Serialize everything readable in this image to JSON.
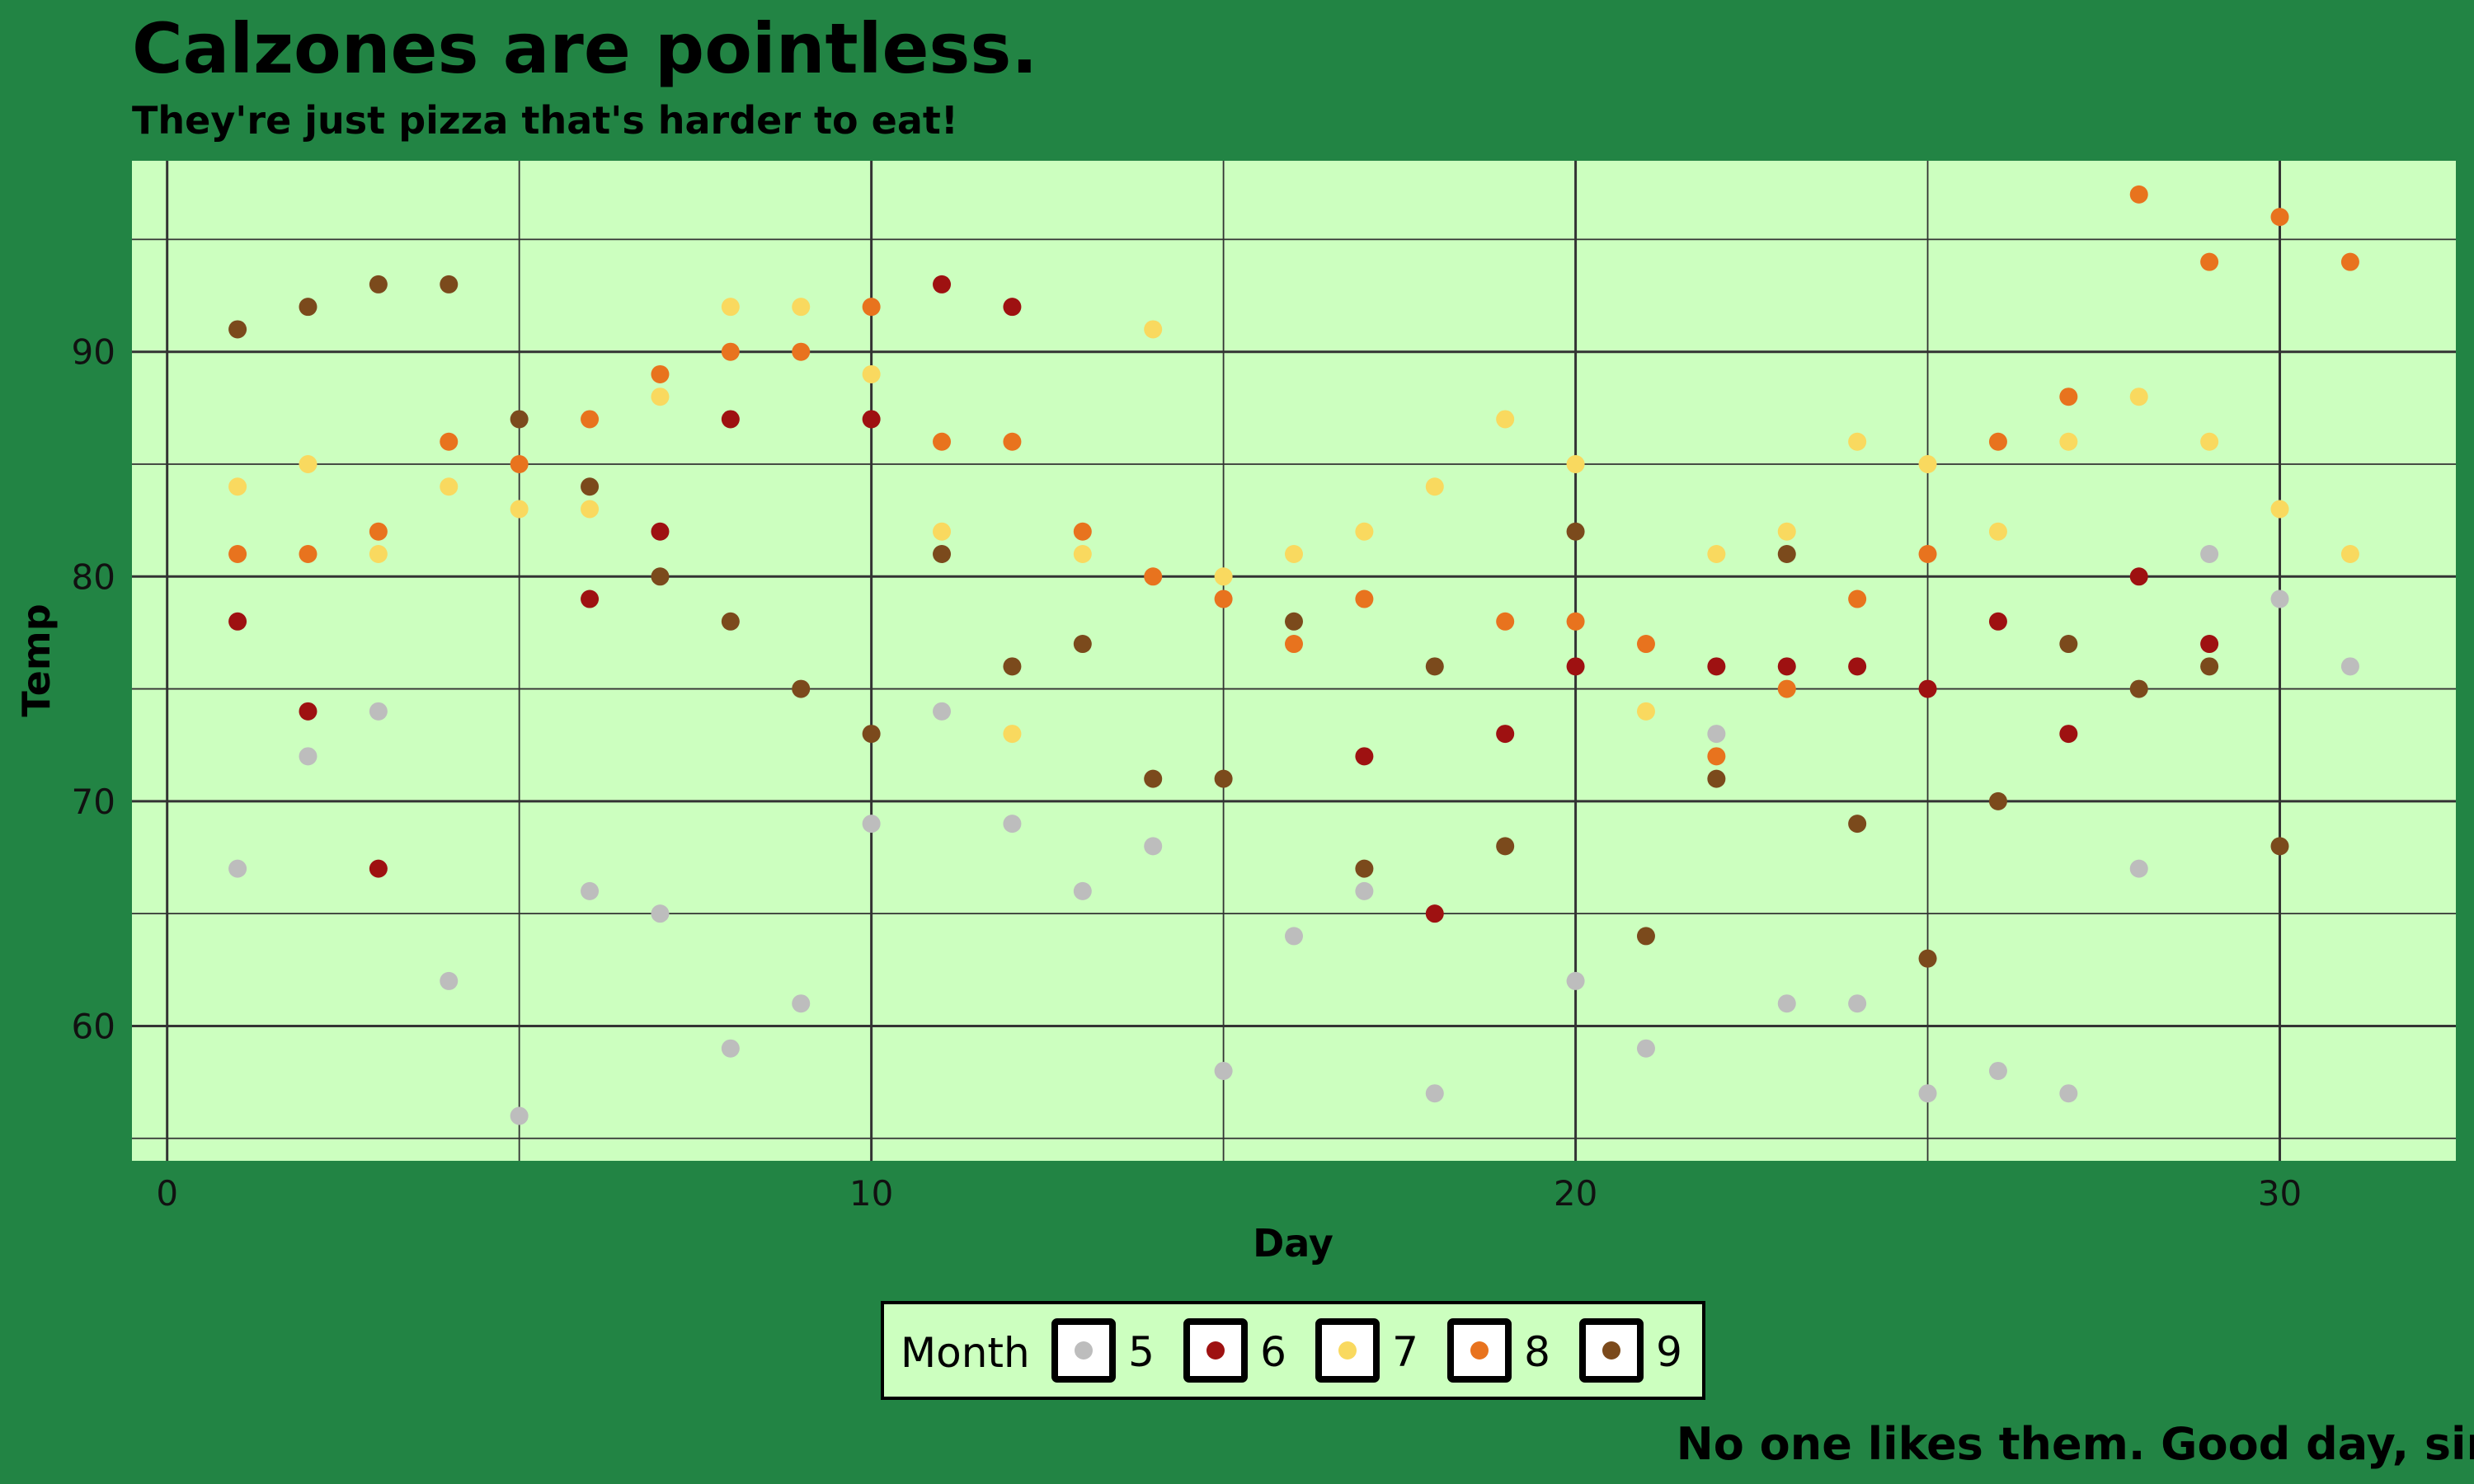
{
  "chart_data": {
    "type": "scatter",
    "title": "Calzones are pointless.",
    "subtitle": "They're just pizza that's harder to eat!",
    "caption": "No one likes them. Good day, sir.",
    "xlabel": "Day",
    "ylabel": "Temp",
    "xlim": [
      -0.5,
      32.5
    ],
    "ylim": [
      54,
      98.5
    ],
    "x_ticks": [
      0,
      10,
      20,
      30
    ],
    "y_ticks": [
      60,
      70,
      80,
      90
    ],
    "grid": true,
    "legend": {
      "title": "Month",
      "position": "bottom",
      "items": [
        {
          "label": "5",
          "color": "#BDBDBD"
        },
        {
          "label": "6",
          "color": "#9E1111"
        },
        {
          "label": "7",
          "color": "#F9D95F"
        },
        {
          "label": "8",
          "color": "#E8731E"
        },
        {
          "label": "9",
          "color": "#7B4A1C"
        }
      ]
    },
    "series": [
      {
        "name": "5",
        "color": "#BDBDBD",
        "points": [
          [
            1,
            67
          ],
          [
            2,
            72
          ],
          [
            3,
            74
          ],
          [
            4,
            62
          ],
          [
            5,
            56
          ],
          [
            6,
            66
          ],
          [
            7,
            65
          ],
          [
            8,
            59
          ],
          [
            9,
            61
          ],
          [
            10,
            69
          ],
          [
            11,
            74
          ],
          [
            12,
            69
          ],
          [
            13,
            66
          ],
          [
            14,
            68
          ],
          [
            15,
            58
          ],
          [
            16,
            64
          ],
          [
            17,
            66
          ],
          [
            18,
            57
          ],
          [
            20,
            62
          ],
          [
            21,
            59
          ],
          [
            22,
            73
          ],
          [
            23,
            61
          ],
          [
            24,
            61
          ],
          [
            25,
            57
          ],
          [
            26,
            58
          ],
          [
            27,
            57
          ],
          [
            28,
            67
          ],
          [
            29,
            81
          ],
          [
            30,
            79
          ],
          [
            31,
            76
          ]
        ]
      },
      {
        "name": "6",
        "color": "#9E1111",
        "points": [
          [
            1,
            78
          ],
          [
            2,
            74
          ],
          [
            3,
            67
          ],
          [
            6,
            79
          ],
          [
            7,
            82
          ],
          [
            8,
            87
          ],
          [
            10,
            87
          ],
          [
            11,
            93
          ],
          [
            12,
            92
          ],
          [
            17,
            72
          ],
          [
            18,
            65
          ],
          [
            19,
            73
          ],
          [
            20,
            76
          ],
          [
            22,
            76
          ],
          [
            23,
            76
          ],
          [
            24,
            76
          ],
          [
            25,
            75
          ],
          [
            26,
            78
          ],
          [
            27,
            73
          ],
          [
            28,
            80
          ],
          [
            29,
            77
          ]
        ]
      },
      {
        "name": "7",
        "color": "#F9D95F",
        "points": [
          [
            1,
            84
          ],
          [
            2,
            85
          ],
          [
            3,
            81
          ],
          [
            4,
            84
          ],
          [
            5,
            83
          ],
          [
            6,
            83
          ],
          [
            7,
            88
          ],
          [
            8,
            92
          ],
          [
            9,
            92
          ],
          [
            10,
            89
          ],
          [
            11,
            82
          ],
          [
            12,
            73
          ],
          [
            13,
            81
          ],
          [
            14,
            91
          ],
          [
            15,
            80
          ],
          [
            16,
            81
          ],
          [
            17,
            82
          ],
          [
            18,
            84
          ],
          [
            19,
            87
          ],
          [
            20,
            85
          ],
          [
            21,
            74
          ],
          [
            22,
            81
          ],
          [
            23,
            82
          ],
          [
            24,
            86
          ],
          [
            25,
            85
          ],
          [
            26,
            82
          ],
          [
            27,
            86
          ],
          [
            28,
            88
          ],
          [
            29,
            86
          ],
          [
            30,
            83
          ],
          [
            31,
            81
          ]
        ]
      },
      {
        "name": "8",
        "color": "#E8731E",
        "points": [
          [
            1,
            81
          ],
          [
            2,
            81
          ],
          [
            3,
            82
          ],
          [
            4,
            86
          ],
          [
            5,
            85
          ],
          [
            6,
            87
          ],
          [
            7,
            89
          ],
          [
            8,
            90
          ],
          [
            9,
            90
          ],
          [
            10,
            92
          ],
          [
            11,
            86
          ],
          [
            12,
            86
          ],
          [
            13,
            82
          ],
          [
            14,
            80
          ],
          [
            15,
            79
          ],
          [
            16,
            77
          ],
          [
            17,
            79
          ],
          [
            19,
            78
          ],
          [
            20,
            78
          ],
          [
            21,
            77
          ],
          [
            22,
            72
          ],
          [
            23,
            75
          ],
          [
            24,
            79
          ],
          [
            25,
            81
          ],
          [
            26,
            86
          ],
          [
            27,
            88
          ],
          [
            28,
            97
          ],
          [
            29,
            94
          ],
          [
            30,
            96
          ],
          [
            31,
            94
          ]
        ]
      },
      {
        "name": "9",
        "color": "#7B4A1C",
        "points": [
          [
            1,
            91
          ],
          [
            2,
            92
          ],
          [
            3,
            93
          ],
          [
            4,
            93
          ],
          [
            5,
            87
          ],
          [
            6,
            84
          ],
          [
            7,
            80
          ],
          [
            8,
            78
          ],
          [
            9,
            75
          ],
          [
            10,
            73
          ],
          [
            11,
            81
          ],
          [
            12,
            76
          ],
          [
            13,
            77
          ],
          [
            14,
            71
          ],
          [
            15,
            71
          ],
          [
            16,
            78
          ],
          [
            17,
            67
          ],
          [
            18,
            76
          ],
          [
            19,
            68
          ],
          [
            20,
            82
          ],
          [
            21,
            64
          ],
          [
            22,
            71
          ],
          [
            23,
            81
          ],
          [
            24,
            69
          ],
          [
            25,
            63
          ],
          [
            26,
            70
          ],
          [
            27,
            77
          ],
          [
            28,
            75
          ],
          [
            29,
            76
          ],
          [
            30,
            68
          ]
        ]
      }
    ]
  }
}
